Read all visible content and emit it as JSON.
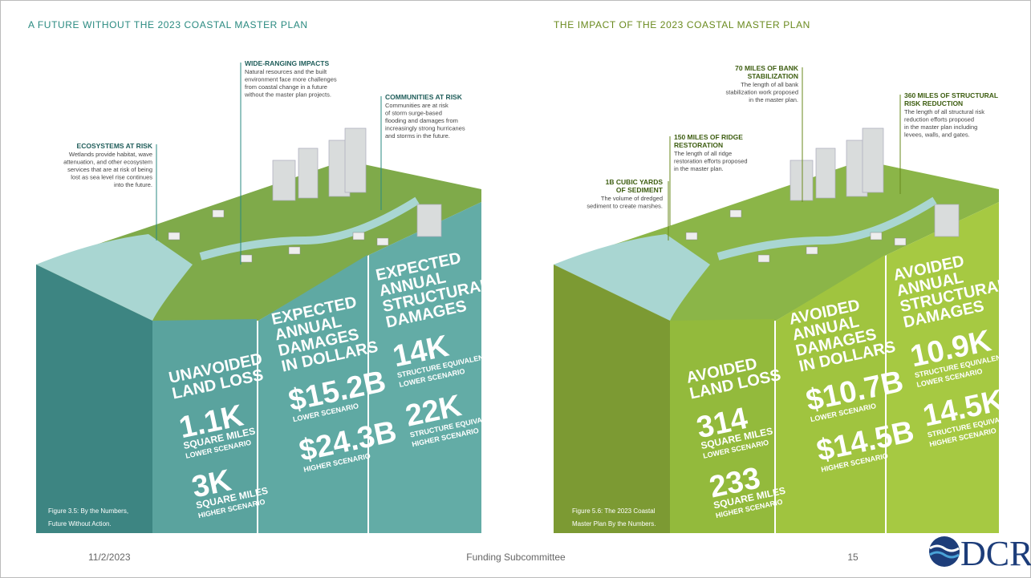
{
  "panels": [
    {
      "title": "A FUTURE WITHOUT THE 2023 COASTAL MASTER PLAN",
      "callouts": [
        {
          "heading": [
            "ECOSYSTEMS AT RISK"
          ],
          "body": [
            "Wetlands provide habitat, wave",
            "attenuation, and other ecosystem",
            "services that are at risk of being",
            "lost as sea level rise continues",
            "into the future."
          ]
        },
        {
          "heading": [
            "WIDE-RANGING IMPACTS"
          ],
          "body": [
            "Natural resources and the built",
            "environment face more challenges",
            "from coastal change in a future",
            "without the master plan projects."
          ]
        },
        {
          "heading": [
            "COMMUNITIES AT RISK"
          ],
          "body": [
            "Communities are at risk",
            "of storm surge-based",
            "flooding and damages from",
            "increasingly strong hurricanes",
            "and storms in the future."
          ]
        }
      ],
      "columns": [
        {
          "heading": [
            "UNAVOIDED",
            "LAND LOSS"
          ],
          "figures": [
            {
              "value": "1.1K",
              "label": [
                "SQUARE MILES",
                "LOWER SCENARIO"
              ]
            },
            {
              "value": "3K",
              "label": [
                "SQUARE MILES",
                "HIGHER SCENARIO"
              ]
            }
          ]
        },
        {
          "heading": [
            "EXPECTED",
            "ANNUAL",
            "DAMAGES",
            "IN DOLLARS"
          ],
          "figures": [
            {
              "value": "$15.2B",
              "label": [
                "LOWER SCENARIO"
              ]
            },
            {
              "value": "$24.3B",
              "label": [
                "HIGHER SCENARIO"
              ]
            }
          ]
        },
        {
          "heading": [
            "EXPECTED",
            "ANNUAL",
            "STRUCTURAL",
            "DAMAGES"
          ],
          "figures": [
            {
              "value": "14K",
              "label": [
                "STRUCTURE EQUIVALENTS",
                "LOWER SCENARIO"
              ]
            },
            {
              "value": "22K",
              "label": [
                "STRUCTURE EQUIVALENTS",
                "HIGHER SCENARIO"
              ]
            }
          ]
        }
      ],
      "caption": [
        "Figure 3.5: By the Numbers,",
        "Future Without Action."
      ]
    },
    {
      "title": "THE IMPACT OF THE 2023 COASTAL MASTER PLAN",
      "callouts": [
        {
          "heading": [
            "1B CUBIC YARDS",
            "OF SEDIMENT"
          ],
          "body": [
            "The volume of dredged",
            "sediment to create marshes."
          ]
        },
        {
          "heading": [
            "150 MILES OF RIDGE",
            "RESTORATION"
          ],
          "body": [
            "The length of all ridge",
            "restoration efforts proposed",
            "in the master plan."
          ]
        },
        {
          "heading": [
            "70 MILES OF BANK",
            "STABILIZATION"
          ],
          "body": [
            "The length of all bank",
            "stabilization work proposed",
            "in the master plan."
          ]
        },
        {
          "heading": [
            "360 MILES OF STRUCTURAL",
            "RISK REDUCTION"
          ],
          "body": [
            "The length of all structural risk",
            "reduction efforts proposed",
            "in the master plan including",
            "levees, walls, and gates."
          ]
        }
      ],
      "columns": [
        {
          "heading": [
            "AVOIDED",
            "LAND LOSS"
          ],
          "figures": [
            {
              "value": "314",
              "label": [
                "SQUARE MILES",
                "LOWER SCENARIO"
              ]
            },
            {
              "value": "233",
              "label": [
                "SQUARE MILES",
                "HIGHER SCENARIO"
              ]
            }
          ]
        },
        {
          "heading": [
            "AVOIDED",
            "ANNUAL",
            "DAMAGES",
            "IN DOLLARS"
          ],
          "figures": [
            {
              "value": "$10.7B",
              "label": [
                "LOWER SCENARIO"
              ]
            },
            {
              "value": "$14.5B",
              "label": [
                "HIGHER SCENARIO"
              ]
            }
          ]
        },
        {
          "heading": [
            "AVOIDED",
            "ANNUAL",
            "STRUCTURAL",
            "DAMAGES"
          ],
          "figures": [
            {
              "value": "10.9K",
              "label": [
                "STRUCTURE EQUIVALENTS",
                "LOWER SCENARIO"
              ]
            },
            {
              "value": "14.5K",
              "label": [
                "STRUCTURE EQUIVALENTS",
                "HIGHER SCENARIO"
              ]
            }
          ]
        }
      ],
      "caption": [
        "Figure 5.6: The 2023 Coastal",
        "Master Plan By the Numbers."
      ]
    }
  ],
  "footer": {
    "date": "11/2/2023",
    "center": "Funding Subcommittee",
    "page": "15",
    "logo": "DCR"
  }
}
